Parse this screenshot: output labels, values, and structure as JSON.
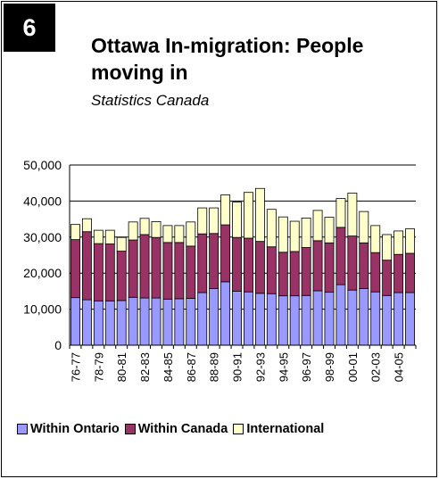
{
  "badge": "6",
  "title": "Ottawa In-migration: People moving in",
  "subtitle": "Statistics Canada",
  "colors": {
    "ontario": "#9999ff",
    "canada": "#993366",
    "international": "#ffffcc"
  },
  "chart_data": {
    "type": "bar",
    "stacked": true,
    "ylim": [
      0,
      50000
    ],
    "yticks": [
      "0",
      "10,000",
      "20,000",
      "30,000",
      "40,000",
      "50,000"
    ],
    "ytick_values": [
      0,
      10000,
      20000,
      30000,
      40000,
      50000
    ],
    "grid": true,
    "legend_position": "bottom",
    "categories": [
      "76-77",
      "77-78",
      "78-79",
      "79-80",
      "80-81",
      "81-82",
      "82-83",
      "83-84",
      "84-85",
      "85-86",
      "86-87",
      "87-88",
      "88-89",
      "89-90",
      "90-91",
      "91-92",
      "92-93",
      "93-94",
      "94-95",
      "95-96",
      "96-97",
      "97-98",
      "98-99",
      "99-00",
      "00-01",
      "01-02",
      "02-03",
      "03-04",
      "04-05",
      "05-06"
    ],
    "visible_xtick_labels": [
      "76-77",
      "78-79",
      "80-81",
      "82-83",
      "84-85",
      "86-87",
      "88-89",
      "90-91",
      "92-93",
      "94-95",
      "96-97",
      "98-99",
      "00-01",
      "02-03",
      "04-05"
    ],
    "series": [
      {
        "name": "Within Ontario",
        "values": [
          13200,
          12600,
          12300,
          12300,
          12400,
          13300,
          13100,
          13100,
          12800,
          12900,
          13000,
          14600,
          15700,
          17600,
          15000,
          14800,
          14400,
          14300,
          13700,
          13700,
          13800,
          15100,
          14700,
          16800,
          15300,
          15700,
          14800,
          13800,
          14600,
          14600
        ]
      },
      {
        "name": "Within Canada",
        "values": [
          16100,
          18900,
          15900,
          15800,
          13700,
          15900,
          17600,
          16800,
          15700,
          15600,
          14500,
          16300,
          15300,
          15800,
          14900,
          14900,
          14400,
          13000,
          12100,
          12300,
          13300,
          13900,
          13700,
          15900,
          15000,
          12700,
          10900,
          9800,
          10600,
          10900
        ]
      },
      {
        "name": "International",
        "values": [
          4200,
          3600,
          3700,
          3800,
          3800,
          5000,
          4500,
          4400,
          4700,
          4700,
          6700,
          7200,
          7100,
          8300,
          9800,
          12700,
          14700,
          10400,
          9800,
          8400,
          8200,
          8400,
          7100,
          8000,
          11900,
          8700,
          7500,
          7100,
          6500,
          6800
        ]
      }
    ]
  }
}
